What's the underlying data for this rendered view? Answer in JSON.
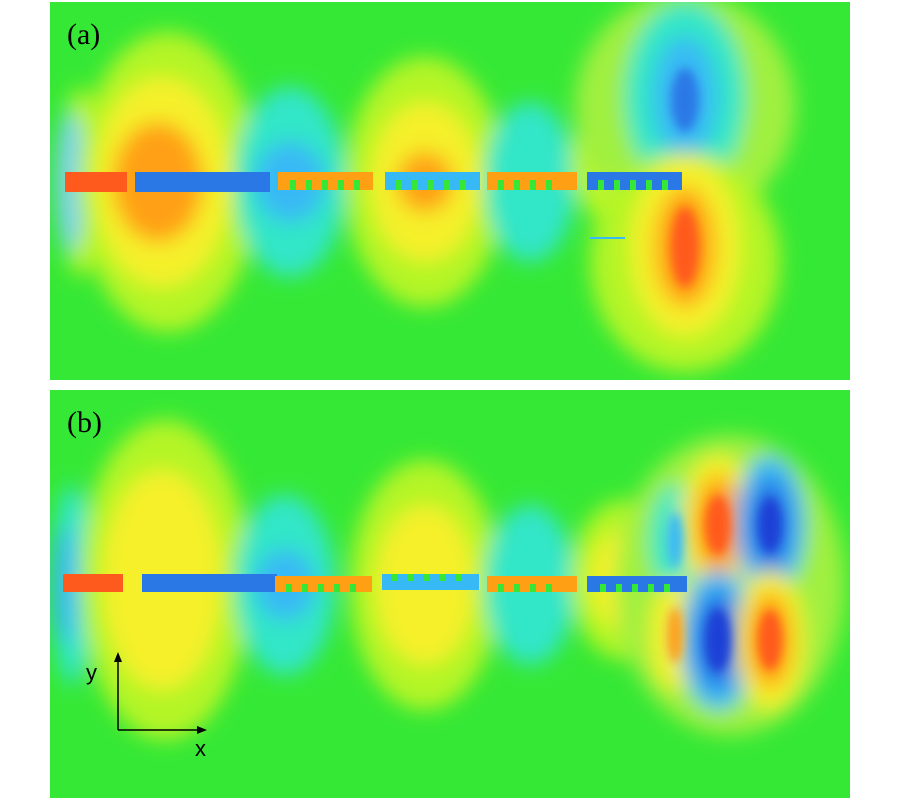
{
  "panels": {
    "a": {
      "label": "(a)"
    },
    "b": {
      "label": "(b)"
    }
  },
  "axes": {
    "x_label": "x",
    "y_label": "y"
  },
  "colormap": {
    "background": "#36e836",
    "dark_red": "#cc3300",
    "red": "#ff5a1e",
    "orange": "#ffa014",
    "yellow": "#f5f02a",
    "yellow_green": "#b4f528",
    "cyan": "#33e6c8",
    "light_blue": "#37b9f5",
    "blue": "#2a78e6",
    "dark_blue": "#1a3fd6"
  }
}
